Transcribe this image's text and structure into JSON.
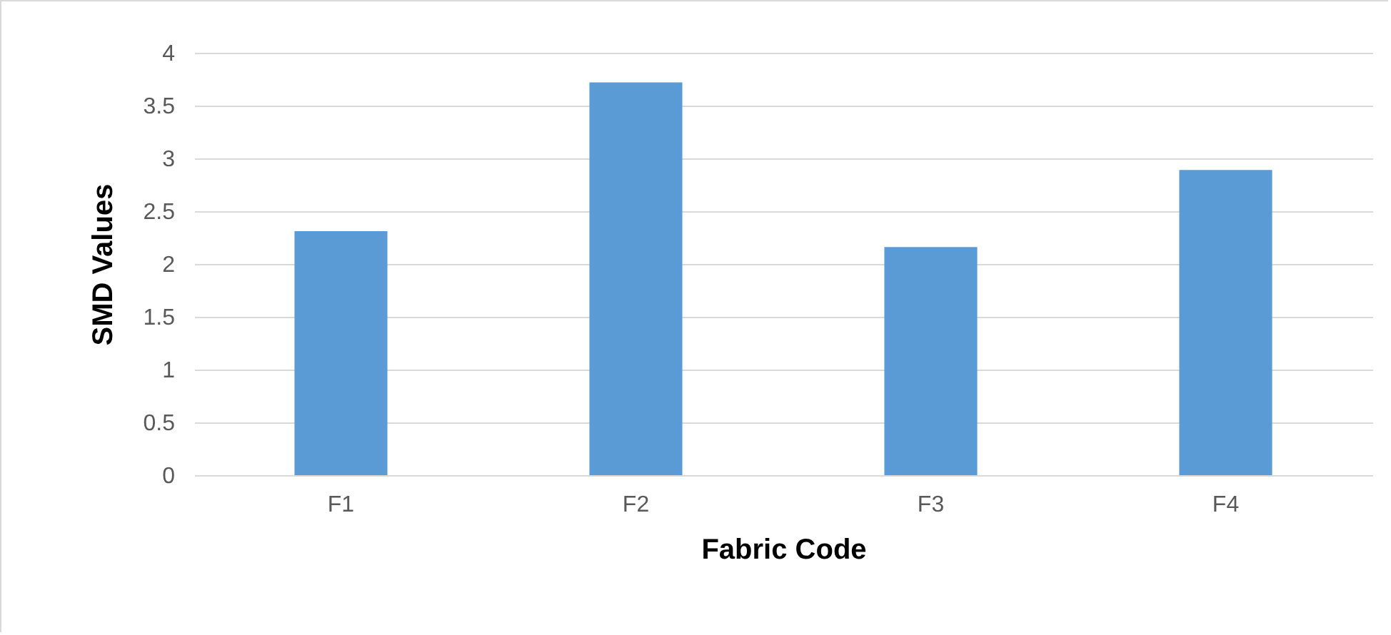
{
  "chart_data": {
    "type": "bar",
    "xlabel": "Fabric Code",
    "ylabel": "SMD Values",
    "categories": [
      "F1",
      "F2",
      "F3",
      "F4"
    ],
    "values": [
      2.31,
      3.72,
      2.16,
      2.89
    ],
    "color": "#5b9bd5",
    "ylim": [
      0,
      4
    ],
    "yticks": [
      0,
      0.5,
      1,
      1.5,
      2,
      2.5,
      3,
      3.5,
      4
    ],
    "grid": "y"
  }
}
